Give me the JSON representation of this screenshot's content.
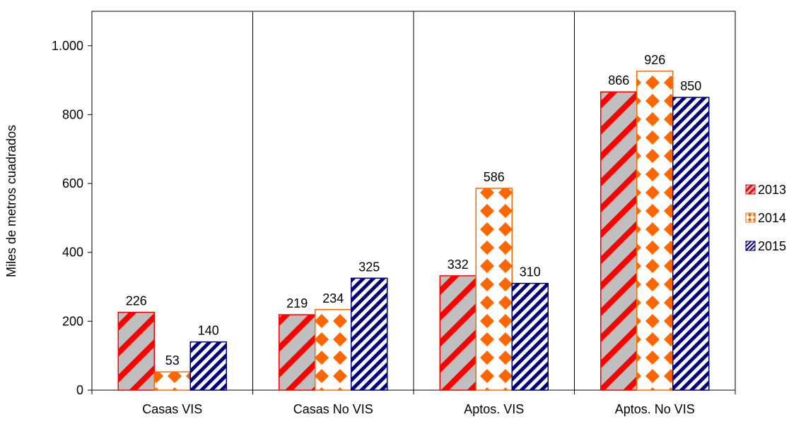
{
  "chart_data": {
    "type": "bar",
    "title": "",
    "xlabel": "",
    "ylabel": "Miles de metros cuadrados",
    "ylim": [
      0,
      1100
    ],
    "y_ticks": [
      0,
      200,
      400,
      600,
      800,
      1000
    ],
    "y_tick_labels": [
      "0",
      "200",
      "400",
      "600",
      "800",
      "1.000"
    ],
    "grid": false,
    "group_separators": true,
    "legend_position": "right",
    "categories": [
      "Casas VIS",
      "Casas No VIS",
      "Aptos. VIS",
      "Aptos. No VIS"
    ],
    "series": [
      {
        "name": "2013",
        "values": [
          226,
          219,
          332,
          866
        ],
        "color": "#ff0000",
        "pattern": "red-gray-diagonal-stripes"
      },
      {
        "name": "2014",
        "values": [
          53,
          234,
          586,
          926
        ],
        "color": "#ff6600",
        "pattern": "orange-white-diamonds"
      },
      {
        "name": "2015",
        "values": [
          140,
          325,
          310,
          850
        ],
        "color": "#000080",
        "pattern": "navy-white-diagonal-stripes"
      }
    ]
  }
}
